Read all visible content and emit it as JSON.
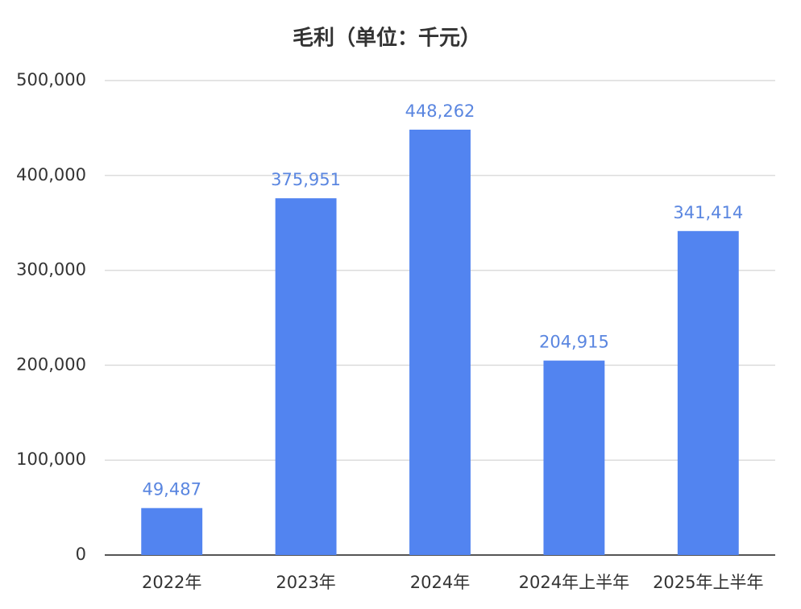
{
  "chart_data": {
    "type": "bar",
    "title": "毛利（单位：千元）",
    "categories": [
      "2022年",
      "2023年",
      "2024年",
      "2024年上半年",
      "2025年上半年"
    ],
    "values": [
      49487,
      375951,
      448262,
      204915,
      341414
    ],
    "value_labels": [
      "49,487",
      "375,951",
      "448,262",
      "204,915",
      "341,414"
    ],
    "color": "#5284f0",
    "label_color": "#5a86e0",
    "ylim": [
      0,
      500000
    ],
    "yticks": [
      0,
      {
        "value": 100000,
        "label": "100,000"
      },
      {
        "value": 200000,
        "label": "200,000"
      },
      {
        "value": 300000,
        "label": "300,000"
      },
      {
        "value": 400000,
        "label": "400,000"
      },
      {
        "value": 500000,
        "label": "500,000"
      }
    ],
    "grid": true
  }
}
